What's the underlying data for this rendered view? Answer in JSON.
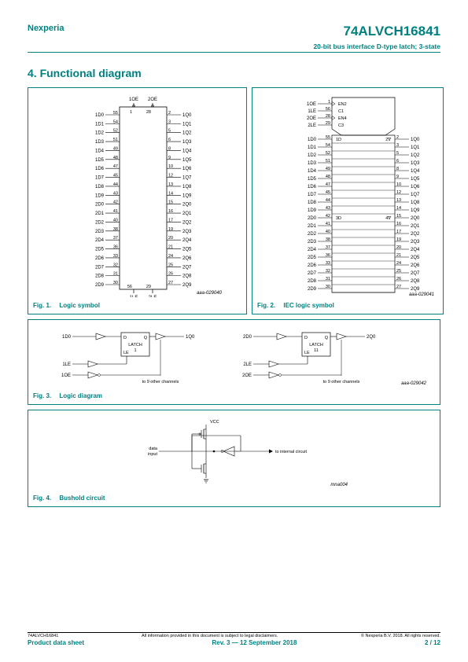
{
  "header": {
    "company": "Nexperia",
    "part_number": "74ALVCH16841",
    "subtitle": "20-bit bus interface D-type latch; 3-state"
  },
  "section": {
    "title": "4.  Functional diagram"
  },
  "figures": {
    "fig1": {
      "num": "Fig. 1.",
      "title": "Logic symbol",
      "ref": "aaa-029040"
    },
    "fig2": {
      "num": "Fig. 2.",
      "title": "IEC logic symbol",
      "ref": "aaa-029041"
    },
    "fig3": {
      "num": "Fig. 3.",
      "title": "Logic diagram",
      "ref": "aaa-029042"
    },
    "fig4": {
      "num": "Fig. 4.",
      "title": "Bushold circuit",
      "ref": "mna004"
    }
  },
  "fig1": {
    "top_pins": [
      {
        "name": "1OE",
        "pin": "1"
      },
      {
        "name": "2OE",
        "pin": "28"
      }
    ],
    "bottom_pins": [
      {
        "name": "1LE",
        "pin": "56"
      },
      {
        "name": "2LE",
        "pin": "29"
      }
    ],
    "left_pins": [
      {
        "label": "1D0",
        "pin": "55"
      },
      {
        "label": "1D1",
        "pin": "54"
      },
      {
        "label": "1D2",
        "pin": "52"
      },
      {
        "label": "1D3",
        "pin": "51"
      },
      {
        "label": "1D4",
        "pin": "49"
      },
      {
        "label": "1D5",
        "pin": "48"
      },
      {
        "label": "1D6",
        "pin": "47"
      },
      {
        "label": "1D7",
        "pin": "45"
      },
      {
        "label": "1D8",
        "pin": "44"
      },
      {
        "label": "1D9",
        "pin": "43"
      },
      {
        "label": "2D0",
        "pin": "42"
      },
      {
        "label": "2D1",
        "pin": "41"
      },
      {
        "label": "2D2",
        "pin": "40"
      },
      {
        "label": "2D3",
        "pin": "38"
      },
      {
        "label": "2D4",
        "pin": "37"
      },
      {
        "label": "2D5",
        "pin": "36"
      },
      {
        "label": "2D6",
        "pin": "33"
      },
      {
        "label": "2D7",
        "pin": "32"
      },
      {
        "label": "2D8",
        "pin": "31"
      },
      {
        "label": "2D9",
        "pin": "30"
      }
    ],
    "right_pins": [
      {
        "label": "1Q0",
        "pin": "2"
      },
      {
        "label": "1Q1",
        "pin": "3"
      },
      {
        "label": "1Q2",
        "pin": "5"
      },
      {
        "label": "1Q3",
        "pin": "6"
      },
      {
        "label": "1Q4",
        "pin": "8"
      },
      {
        "label": "1Q5",
        "pin": "9"
      },
      {
        "label": "1Q6",
        "pin": "10"
      },
      {
        "label": "1Q7",
        "pin": "12"
      },
      {
        "label": "1Q8",
        "pin": "13"
      },
      {
        "label": "1Q9",
        "pin": "14"
      },
      {
        "label": "2Q0",
        "pin": "15"
      },
      {
        "label": "2Q1",
        "pin": "16"
      },
      {
        "label": "2Q2",
        "pin": "17"
      },
      {
        "label": "2Q3",
        "pin": "19"
      },
      {
        "label": "2Q4",
        "pin": "20"
      },
      {
        "label": "2Q5",
        "pin": "21"
      },
      {
        "label": "2Q6",
        "pin": "24"
      },
      {
        "label": "2Q7",
        "pin": "25"
      },
      {
        "label": "2Q8",
        "pin": "26"
      },
      {
        "label": "2Q9",
        "pin": "27"
      }
    ]
  },
  "fig2": {
    "ctrl_left": [
      {
        "label": "1OE",
        "pin": "1"
      },
      {
        "label": "1LE",
        "pin": "56"
      },
      {
        "label": "2OE",
        "pin": "28"
      },
      {
        "label": "2LE",
        "pin": "29"
      }
    ],
    "ctrl_right": [
      "EN2",
      "C1",
      "EN4",
      "C3"
    ],
    "mid_left": "1D",
    "mid_right": "2∇",
    "mid2_left": "3D",
    "mid2_right": "4∇",
    "left_pins": [
      {
        "label": "1D0",
        "pin": "55"
      },
      {
        "label": "1D1",
        "pin": "54"
      },
      {
        "label": "1D2",
        "pin": "52"
      },
      {
        "label": "1D3",
        "pin": "51"
      },
      {
        "label": "1D4",
        "pin": "49"
      },
      {
        "label": "1D5",
        "pin": "48"
      },
      {
        "label": "1D6",
        "pin": "47"
      },
      {
        "label": "1D7",
        "pin": "45"
      },
      {
        "label": "1D8",
        "pin": "44"
      },
      {
        "label": "1D9",
        "pin": "43"
      },
      {
        "label": "2D0",
        "pin": "42"
      },
      {
        "label": "2D1",
        "pin": "41"
      },
      {
        "label": "2D2",
        "pin": "40"
      },
      {
        "label": "2D3",
        "pin": "38"
      },
      {
        "label": "2D4",
        "pin": "37"
      },
      {
        "label": "2D5",
        "pin": "36"
      },
      {
        "label": "2D6",
        "pin": "33"
      },
      {
        "label": "2D7",
        "pin": "32"
      },
      {
        "label": "2D8",
        "pin": "31"
      },
      {
        "label": "2D9",
        "pin": "30"
      }
    ],
    "right_pins": [
      {
        "label": "1Q0",
        "pin": "2"
      },
      {
        "label": "1Q1",
        "pin": "3"
      },
      {
        "label": "1Q2",
        "pin": "5"
      },
      {
        "label": "1Q3",
        "pin": "6"
      },
      {
        "label": "1Q4",
        "pin": "8"
      },
      {
        "label": "1Q5",
        "pin": "9"
      },
      {
        "label": "1Q6",
        "pin": "10"
      },
      {
        "label": "1Q7",
        "pin": "12"
      },
      {
        "label": "1Q8",
        "pin": "13"
      },
      {
        "label": "1Q9",
        "pin": "14"
      },
      {
        "label": "2Q0",
        "pin": "15"
      },
      {
        "label": "2Q1",
        "pin": "16"
      },
      {
        "label": "2Q2",
        "pin": "17"
      },
      {
        "label": "2Q3",
        "pin": "19"
      },
      {
        "label": "2Q4",
        "pin": "20"
      },
      {
        "label": "2Q5",
        "pin": "21"
      },
      {
        "label": "2Q6",
        "pin": "24"
      },
      {
        "label": "2Q7",
        "pin": "25"
      },
      {
        "label": "2Q8",
        "pin": "26"
      },
      {
        "label": "2Q9",
        "pin": "27"
      }
    ]
  },
  "fig3": {
    "latch1": {
      "name": "LATCH",
      "num": "1",
      "d_in": "1D0",
      "q_out": "1Q0",
      "le_in": "1LE",
      "oe_in": "1OE",
      "note": "to 9 other channels"
    },
    "latch2": {
      "name": "LATCH",
      "num": "11",
      "d_in": "2D0",
      "q_out": "2Q0",
      "le_in": "2LE",
      "oe_in": "2OE",
      "note": "to 9 other channels"
    }
  },
  "fig4": {
    "vcc": "VCC",
    "data_in": "data input",
    "out": "to internal circuit"
  },
  "footer": {
    "part": "74ALVCH16841",
    "disclaimer": "All information provided in this document is subject to legal disclaimers.",
    "copyright": "© Nexperia B.V. 2018. All rights reserved.",
    "doc_type": "Product data sheet",
    "rev": "Rev. 3 — 12 September 2018",
    "page": "2 / 12"
  }
}
